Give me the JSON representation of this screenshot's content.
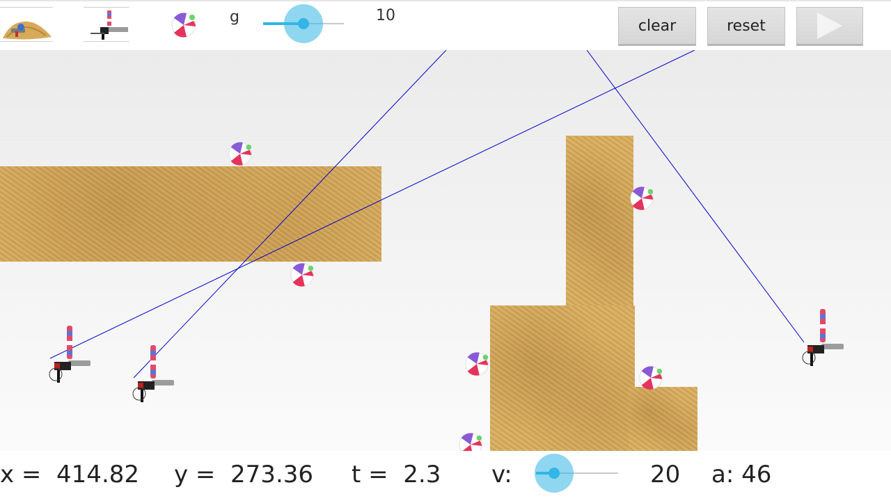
{
  "toolbar": {
    "tools": [
      {
        "name": "sand-tool",
        "icon": "sand-pile-icon"
      },
      {
        "name": "cannon-tool",
        "icon": "cannon-icon"
      },
      {
        "name": "ball-tool",
        "icon": "beach-ball-icon"
      }
    ],
    "g_label": "g",
    "g_value": "10",
    "g_slider_fraction": 0.5,
    "buttons": {
      "clear": "clear",
      "reset": "reset",
      "play_icon": "play-icon"
    }
  },
  "colors": {
    "accent": "#33b5e5",
    "trajectory": "#0000cc",
    "sand": "#d9ad5c",
    "button_bg": "#dddddd"
  },
  "status": {
    "x_label": "x =",
    "x_value": "414.82",
    "y_label": "y =",
    "y_value": "273.36",
    "t_label": "t =",
    "t_value": "2.3",
    "v_label": "v:",
    "v_value": "20",
    "v_slider_fraction": 0.22,
    "a_label": "a:",
    "a_value": "46"
  }
}
